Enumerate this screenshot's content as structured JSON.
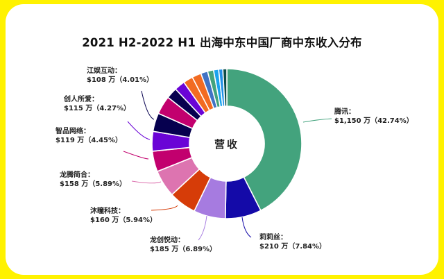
{
  "chart_data": {
    "type": "pie",
    "variant": "donut",
    "title": "2021 H2-2022 H1 出海中东中国厂商中东收入分布",
    "center_label": "营收",
    "unit": "万美元",
    "slices": [
      {
        "name": "腾讯",
        "value": 1150,
        "value_label": "$1,150 万",
        "percent": 42.74,
        "percent_label": "（42.74%）",
        "color": "#43a37d"
      },
      {
        "name": "莉莉丝",
        "value": 210,
        "value_label": "$210 万",
        "percent": 7.84,
        "percent_label": "（7.84%）",
        "color": "#140aa8"
      },
      {
        "name": "龙创悦动",
        "value": 185,
        "value_label": "$185 万",
        "percent": 6.89,
        "percent_label": "（6.89%）",
        "color": "#a67be0"
      },
      {
        "name": "沐瞳科技",
        "value": 160,
        "value_label": "$160 万",
        "percent": 5.94,
        "percent_label": "（5.94%）",
        "color": "#d63c08"
      },
      {
        "name": "龙腾简合",
        "value": 158,
        "value_label": "$158 万",
        "percent": 5.89,
        "percent_label": "（5.89%）",
        "color": "#dd74b0"
      },
      {
        "name": "智品网络",
        "value": 119,
        "value_label": "$119 万",
        "percent": 4.45,
        "percent_label": "（4.45%）",
        "color": "#c2006e"
      },
      {
        "name": "创人所爱",
        "value": 115,
        "value_label": "$115 万",
        "percent": 4.27,
        "percent_label": "（4.27%）",
        "color": "#6a04d6"
      },
      {
        "name": "江娱互动",
        "value": 108,
        "value_label": "$108 万",
        "percent": 4.01,
        "percent_label": "（4.01%）",
        "color": "#06004f"
      },
      {
        "name": "",
        "percent": 4.0,
        "color": "#c2006e"
      },
      {
        "name": "",
        "percent": 2.4,
        "color": "#06004f"
      },
      {
        "name": "",
        "percent": 2.3,
        "color": "#6a04d6"
      },
      {
        "name": "",
        "percent": 2.1,
        "color": "#f26b21"
      },
      {
        "name": "",
        "percent": 2.0,
        "color": "#f26b21"
      },
      {
        "name": "",
        "percent": 1.5,
        "color": "#4173c4"
      },
      {
        "name": "",
        "percent": 1.3,
        "color": "#43a37d"
      },
      {
        "name": "",
        "percent": 1.1,
        "color": "#1aa3ee"
      },
      {
        "name": "",
        "percent": 0.9,
        "color": "#1f8fe6"
      },
      {
        "name": "",
        "percent": 0.87,
        "color": "#0d4d48"
      }
    ],
    "background_color": "#fff200"
  }
}
